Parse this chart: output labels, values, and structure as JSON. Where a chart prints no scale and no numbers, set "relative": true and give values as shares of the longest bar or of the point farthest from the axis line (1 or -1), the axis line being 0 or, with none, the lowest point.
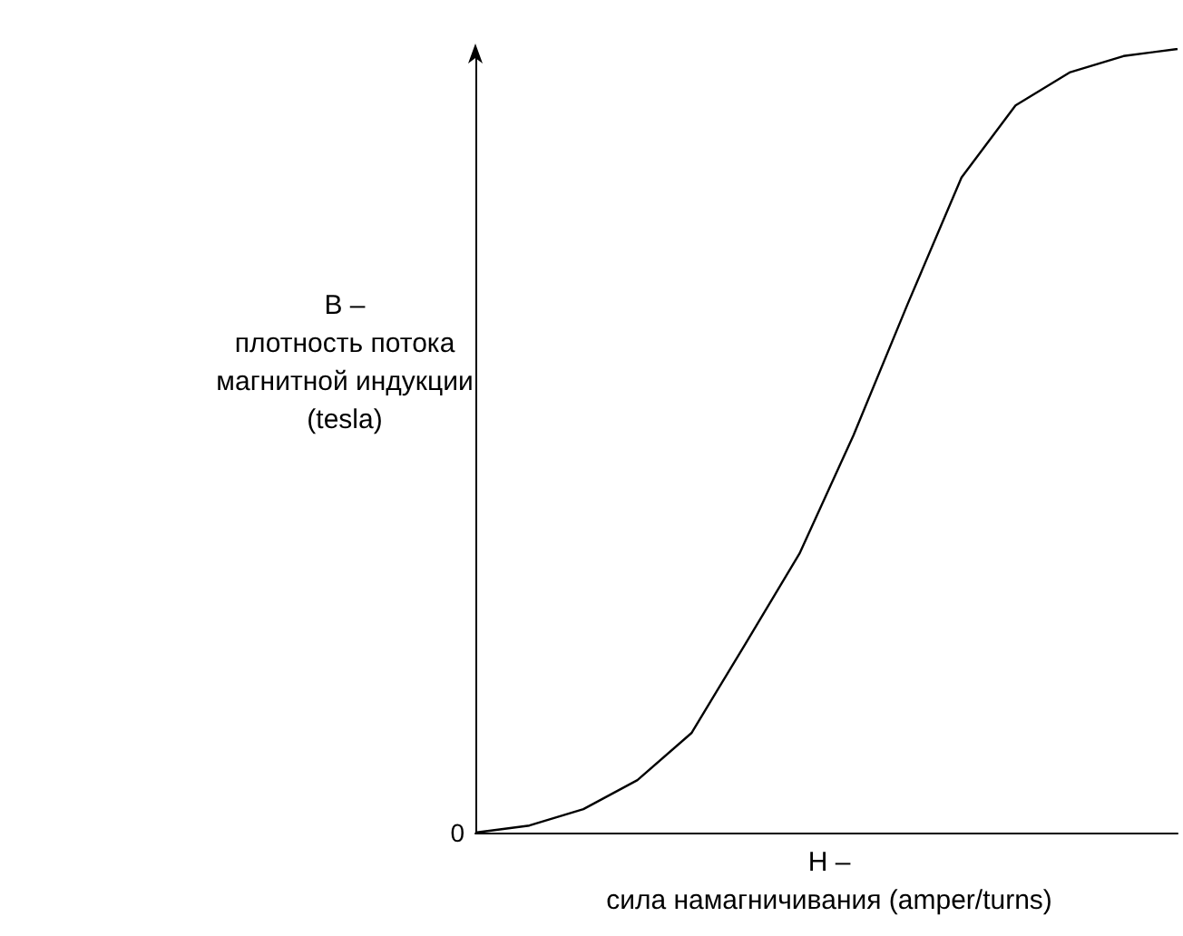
{
  "chart_data": {
    "type": "line",
    "relative": true,
    "xlabel": "H –\nсила намагничивания (amper/turns)",
    "ylabel": "B –\nплотность потока\nмагнитной индукции\n(tesla)",
    "annotations": [
      "0"
    ],
    "categories": [
      null,
      null,
      null,
      null,
      null,
      null,
      null,
      null,
      null,
      null,
      null,
      null,
      null,
      null
    ],
    "values": [
      0,
      0.009,
      0.03,
      0.067,
      0.127,
      0.241,
      0.356,
      0.507,
      0.674,
      0.836,
      0.928,
      0.97,
      0.991,
      1
    ],
    "color": "#000000",
    "marker": "none",
    "line_style": "solid"
  }
}
